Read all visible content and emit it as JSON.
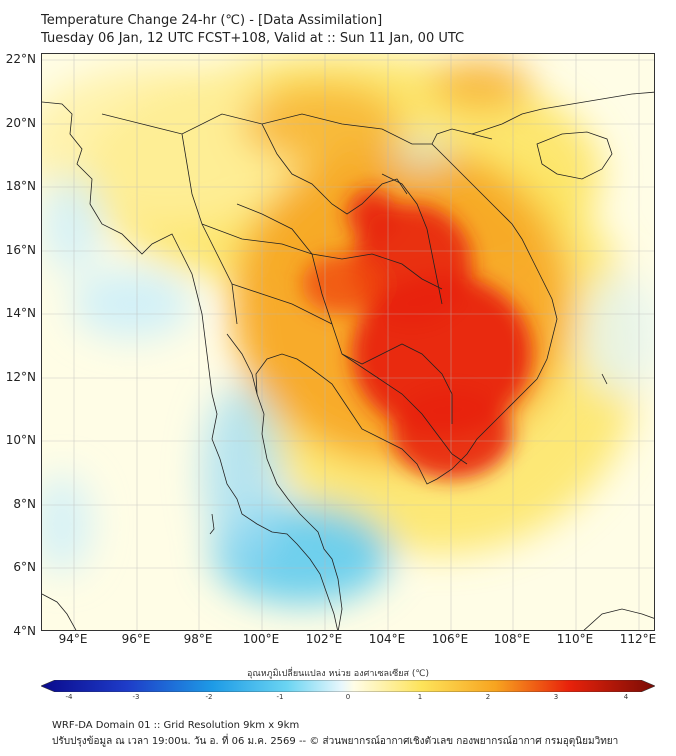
{
  "title": {
    "line1": "Temperature Change 24-hr (℃) - [Data Assimilation]",
    "line2": "Tuesday 06 Jan, 12 UTC FCST+108, Valid at :: Sun 11 Jan, 00 UTC"
  },
  "map": {
    "lat_labels": [
      "22°N",
      "20°N",
      "18°N",
      "16°N",
      "14°N",
      "12°N",
      "10°N",
      "8°N",
      "6°N",
      "4°N"
    ],
    "lon_labels": [
      "94°E",
      "96°E",
      "98°E",
      "100°E",
      "102°E",
      "104°E",
      "106°E",
      "108°E",
      "110°E",
      "112°E"
    ],
    "colors": {
      "hot": "#e8220b",
      "warm": "#f7a420",
      "mild": "#fde35a",
      "neutral": "#ffffdc",
      "cool": "#cdeffa",
      "cold": "#55c8ef"
    }
  },
  "colorbar": {
    "title": "อุณหภูมิเปลี่ยนแปลง หน่วย องศาเซลเซียส (℃)",
    "ticks": [
      "-4",
      "-3",
      "-2",
      "-1",
      "0",
      "1",
      "2",
      "3",
      "4"
    ]
  },
  "footer": {
    "line1": "WRF-DA Domain 01 :: Grid Resolution 9km x 9km",
    "line2": "ปรับปรุงข้อมูล ณ เวลา 19:00น. วัน อ. ที่ 06 ม.ค. 2569 -- © ส่วนพยากรณ์อากาศเชิงตัวเลข กองพยากรณ์อากาศ กรมอุตุนิยมวิทยา"
  }
}
